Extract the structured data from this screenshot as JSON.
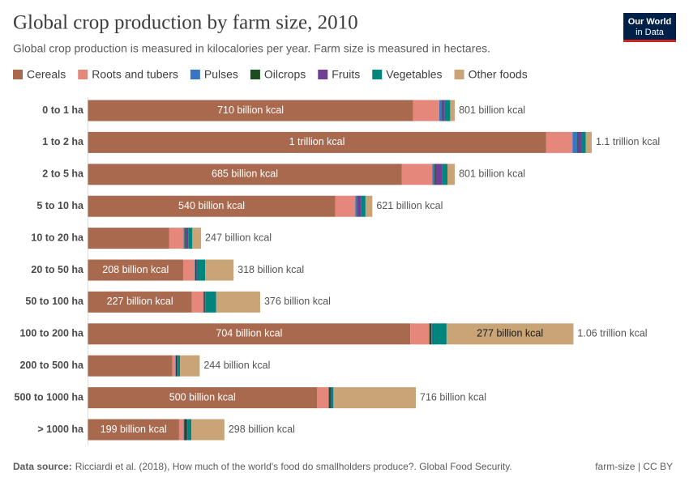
{
  "chart_data": {
    "type": "stacked-bar-horizontal",
    "title": "Global crop production by farm size, 2010",
    "subtitle": "Global crop production is measured in kilocalories per year. Farm size is measured in hectares.",
    "categories": [
      "0 to 1 ha",
      "1 to 2 ha",
      "2 to 5 ha",
      "5 to 10 ha",
      "10 to 20 ha",
      "20 to 50 ha",
      "50 to 100 ha",
      "100 to 200 ha",
      "200 to 500 ha",
      "500 to 1000 ha",
      "> 1000 ha"
    ],
    "series": [
      {
        "name": "Cereals",
        "color": "#a8694e",
        "values": [
          710,
          1000,
          685,
          540,
          177,
          208,
          227,
          704,
          184,
          500,
          199
        ],
        "value_labels": [
          "710 billion kcal",
          "1 trillion kcal",
          "685 billion kcal",
          "540 billion kcal",
          null,
          "208 billion kcal",
          "227 billion kcal",
          "704 billion kcal",
          null,
          "500 billion kcal",
          "199 billion kcal"
        ]
      },
      {
        "name": "Roots and tubers",
        "color": "#e5877b",
        "values": [
          57,
          58,
          67,
          44,
          32,
          25,
          25,
          41,
          7,
          25,
          10
        ]
      },
      {
        "name": "Pulses",
        "color": "#3a74c4",
        "values": [
          5,
          11,
          5,
          4,
          3,
          1,
          1,
          1,
          1,
          1,
          1
        ]
      },
      {
        "name": "Oilcrops",
        "color": "#1c4d1e",
        "values": [
          2,
          2,
          3,
          2,
          2,
          3,
          2,
          4,
          3,
          4,
          6
        ]
      },
      {
        "name": "Fruits",
        "color": "#6f3f93",
        "values": [
          5,
          7,
          14,
          7,
          5,
          1,
          1,
          1,
          1,
          1,
          1
        ]
      },
      {
        "name": "Vegetables",
        "color": "#00847e",
        "values": [
          12,
          9,
          11,
          9,
          9,
          18,
          24,
          32,
          5,
          5,
          9
        ]
      },
      {
        "name": "Other foods",
        "color": "#c9a477",
        "values": [
          10,
          13,
          16,
          15,
          19,
          62,
          96,
          277,
          43,
          180,
          72
        ],
        "value_labels": [
          null,
          null,
          null,
          null,
          null,
          null,
          null,
          "277 billion kcal",
          null,
          null,
          null
        ]
      }
    ],
    "totals": [
      801,
      1100,
      801,
      621,
      247,
      318,
      376,
      1060,
      244,
      716,
      298
    ],
    "total_labels": [
      "801 billion kcal",
      "1.1 trillion kcal",
      "801 billion kcal",
      "621 billion kcal",
      "247 billion kcal",
      "318 billion kcal",
      "376 billion kcal",
      "1.06 trillion kcal",
      "244 billion kcal",
      "716 billion kcal",
      "298 billion kcal"
    ],
    "xlim": [
      0,
      1100
    ],
    "source_label": "Data source:",
    "source": "Ricciardi et al. (2018), How much of the world's food do smallholders produce?. Global Food Security.",
    "license": "farm-size | CC BY"
  },
  "logo": {
    "line1": "Our World",
    "line2": "in Data"
  }
}
